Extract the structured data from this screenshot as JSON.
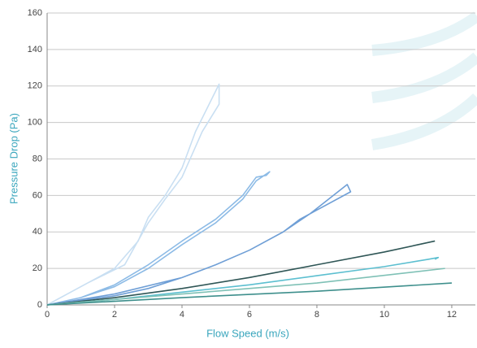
{
  "chart_data": {
    "type": "line",
    "x_label": "Flow Speed (m/s)",
    "y_label": "Pressure Drop (Pa)",
    "xlim": [
      0,
      12.7
    ],
    "xticks": [
      0,
      2,
      4,
      6,
      8,
      10,
      12
    ],
    "ylim": [
      0,
      160
    ],
    "yticks": [
      0,
      20,
      40,
      60,
      80,
      100,
      120,
      140,
      160
    ],
    "grid": true,
    "series": [
      {
        "color": "#c9dff2",
        "x": [
          0,
          1,
          2,
          2.7,
          3,
          3.5,
          4,
          4.4,
          5.1,
          5.1,
          4.6,
          4,
          3.5,
          3,
          2.6,
          2.3,
          1.2,
          0
        ],
        "values": [
          0,
          10,
          20,
          35,
          48,
          60,
          75,
          95,
          121,
          110,
          95,
          70,
          58,
          45,
          32,
          22,
          12,
          0
        ]
      },
      {
        "color": "#8dbbe6",
        "x": [
          0,
          1,
          2,
          3,
          4,
          5,
          5.8,
          6.2,
          6.6,
          6.5,
          6.2,
          5.8,
          5,
          4,
          3,
          2,
          1,
          0
        ],
        "values": [
          0,
          4,
          10,
          20,
          33,
          45,
          58,
          68,
          73,
          71,
          70,
          60,
          47,
          35,
          22,
          11,
          4,
          0
        ]
      },
      {
        "color": "#6f9fd6",
        "x": [
          0,
          2,
          3,
          4,
          5,
          6,
          7,
          7.8,
          8.9,
          9,
          8,
          7.5,
          7,
          6,
          5,
          4,
          2,
          0
        ],
        "values": [
          0,
          5,
          9,
          15,
          22,
          30,
          40,
          50,
          66,
          62,
          52,
          47,
          40,
          30,
          22,
          15,
          6,
          0
        ]
      },
      {
        "color": "#2f5656",
        "x": [
          0,
          2,
          4,
          6,
          8,
          10,
          11,
          11.5
        ],
        "values": [
          0,
          4,
          9,
          15,
          22,
          29,
          33,
          35
        ]
      },
      {
        "color": "#5cbfd0",
        "x": [
          0,
          2,
          4,
          6,
          8,
          10,
          11.3,
          11.6,
          11.5
        ],
        "values": [
          0,
          3,
          7,
          11,
          16,
          21,
          25,
          26,
          25
        ]
      },
      {
        "color": "#7fc1b6",
        "x": [
          0,
          4,
          8,
          11.8
        ],
        "values": [
          0,
          6,
          12,
          20
        ]
      },
      {
        "color": "#3e8f8c",
        "x": [
          0,
          4,
          8,
          12
        ],
        "values": [
          0,
          4,
          7.5,
          12
        ]
      }
    ]
  }
}
